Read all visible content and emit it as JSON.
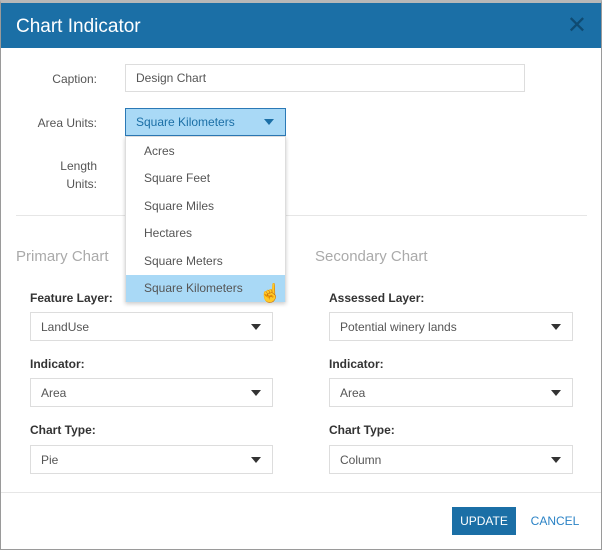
{
  "dialog": {
    "title": "Chart Indicator",
    "close_icon": "close-icon"
  },
  "form": {
    "caption_label": "Caption:",
    "caption_value": "Design Chart",
    "area_units_label": "Area Units:",
    "area_units_value": "Square Kilometers",
    "area_units_options": [
      "Acres",
      "Square Feet",
      "Square Miles",
      "Hectares",
      "Square Meters",
      "Square Kilometers"
    ],
    "length_units_label_1": "Length",
    "length_units_label_2": "Units:"
  },
  "primary": {
    "title": "Primary Chart",
    "feature_layer_label": "Feature Layer:",
    "feature_layer_value": "LandUse",
    "indicator_label": "Indicator:",
    "indicator_value": "Area",
    "chart_type_label": "Chart Type:",
    "chart_type_value": "Pie"
  },
  "secondary": {
    "title": "Secondary Chart",
    "assessed_layer_label": "Assessed Layer:",
    "assessed_layer_value": "Potential winery lands",
    "indicator_label": "Indicator:",
    "indicator_value": "Area",
    "chart_type_label": "Chart Type:",
    "chart_type_value": "Column"
  },
  "footer": {
    "update_label": "UPDATE",
    "cancel_label": "CANCEL"
  },
  "colors": {
    "header": "#1b6fa6",
    "highlight": "#a9d9f6"
  }
}
